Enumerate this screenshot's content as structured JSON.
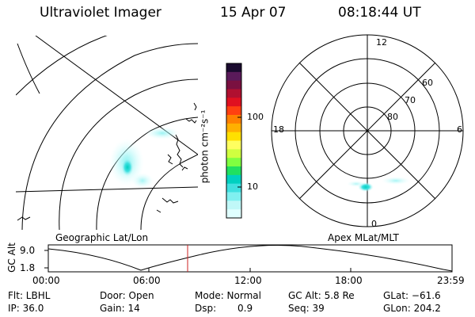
{
  "header": {
    "instrument": "Ultraviolet Imager",
    "date": "15 Apr 07",
    "time": "08:18:44 UT"
  },
  "colorbar": {
    "unit_label": "photon cm⁻²s⁻¹",
    "ticks": [
      "100",
      "10"
    ],
    "colors": [
      "#1a0a2e",
      "#5a1a5a",
      "#7a1040",
      "#b01030",
      "#e01020",
      "#ff4010",
      "#ff8000",
      "#ffb000",
      "#ffe000",
      "#ffff60",
      "#d0ff40",
      "#80ff40",
      "#20e060",
      "#00d0c0",
      "#40e0e0",
      "#80f0f0",
      "#c0f8f8",
      "#e0ffff"
    ]
  },
  "left_map": {
    "label": "Geographic Lat/Lon"
  },
  "polar_plot": {
    "label": "Apex MLat/MLT",
    "mlt_labels": {
      "top": "12",
      "left": "18",
      "right": "6",
      "bottom": "0"
    },
    "lat_labels": [
      "60",
      "70",
      "80"
    ]
  },
  "altitude_plot": {
    "ylabel": "GC Alt",
    "yticks": [
      "9.0",
      "1.8"
    ],
    "xticks": [
      "00:00",
      "06:00",
      "12:00",
      "18:00",
      "23:59"
    ],
    "marker_color": "#cc2020"
  },
  "info": {
    "flt": "Flt: LBHL",
    "ip": "IP: 36.0",
    "door": "Door: Open",
    "gain": "Gain: 14",
    "mode": "Mode: Normal",
    "dsp_label": "Dsp:",
    "dsp_value": "0.9",
    "gc_alt": "GC Alt: 5.8 Re",
    "seq": "Seq: 39",
    "glat": "GLat: −61.6",
    "glon": "GLon: 204.2"
  }
}
